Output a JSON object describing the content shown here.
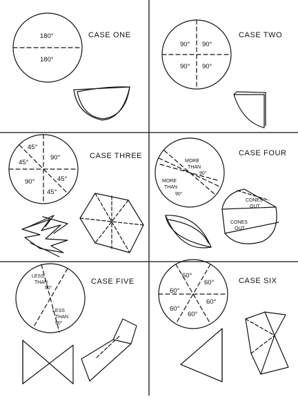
{
  "cases": [
    {
      "title": "CASE ONE",
      "labels": [
        "180°",
        "180°"
      ]
    },
    {
      "title": "CASE TWO",
      "labels": [
        "90°",
        "90°",
        "90°",
        "90°"
      ]
    },
    {
      "title": "CASE THREE",
      "labels": [
        "45°",
        "45°",
        "90°",
        "90°",
        "45°",
        "45°"
      ]
    },
    {
      "title": "CASE FOUR",
      "labels": [
        "MORE",
        "THAN",
        "90°",
        "MORE",
        "THAN",
        "90°"
      ],
      "folded_labels": [
        "CONES",
        "OUT",
        "CONES",
        "OUT"
      ]
    },
    {
      "title": "CASE FIVE",
      "labels": [
        "LESS",
        "THAN",
        "90°",
        "LESS",
        "THAN",
        "90°"
      ]
    },
    {
      "title": "CASE SIX",
      "labels": [
        "60°",
        "60°",
        "60°",
        "60°",
        "60°",
        "60°"
      ]
    }
  ],
  "colors": {
    "ink": "#111111",
    "paper": "#ffffff"
  }
}
